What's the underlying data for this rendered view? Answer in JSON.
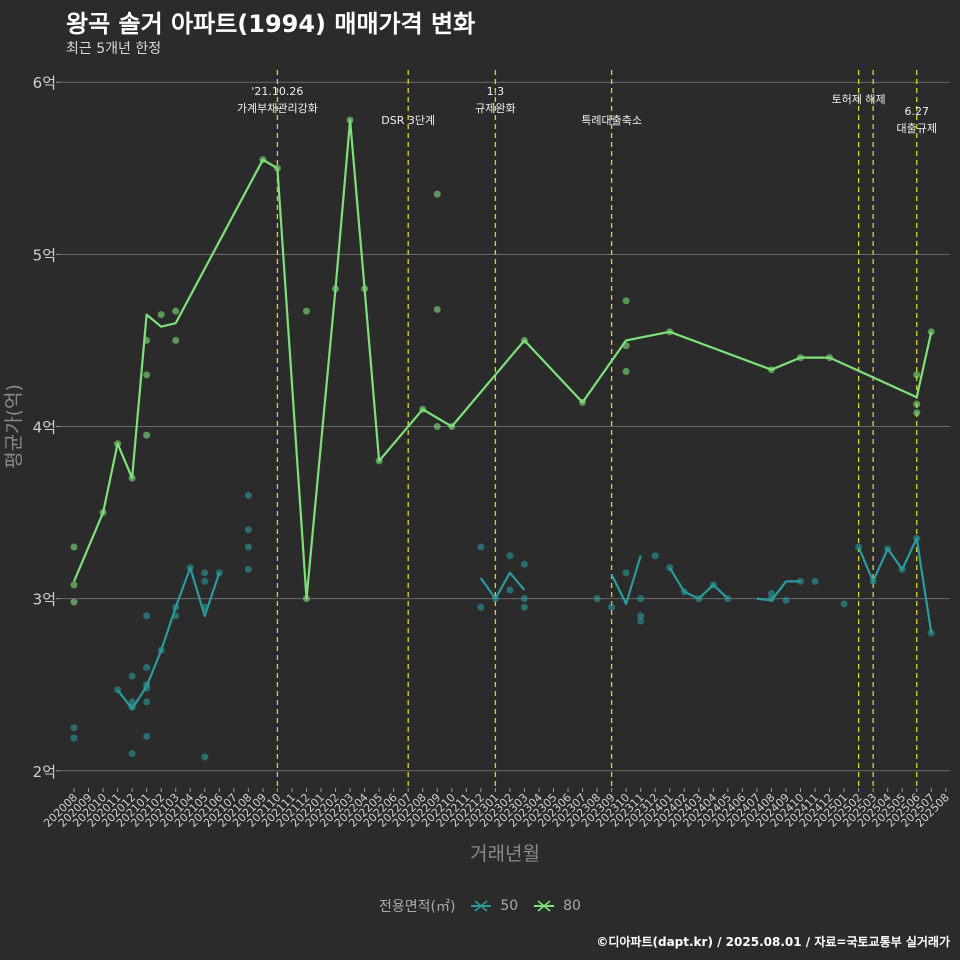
{
  "header": {
    "title": "왕곡 솔거 아파트(1994) 매매가격 변화",
    "subtitle": "최근 5개년 한정"
  },
  "caption": "©디아파트(dapt.kr) / 2025.08.01 / 자료=국토교통부 실거래가",
  "legend": {
    "title": "전용면적(㎡)",
    "items": [
      {
        "label": "50",
        "color": "#2a9a9c"
      },
      {
        "label": "80",
        "color": "#7fe07a"
      }
    ]
  },
  "chart_data": {
    "type": "line",
    "xlabel": "거래년월",
    "ylabel": "평균가(억)",
    "ylim": [
      1.9,
      6.1
    ],
    "y_ticks": [
      2,
      3,
      4,
      5,
      6
    ],
    "y_tick_labels": [
      "2억",
      "3억",
      "4억",
      "5억",
      "6억"
    ],
    "grid": true,
    "legend_position": "bottom",
    "categories": [
      "202008",
      "202009",
      "202010",
      "202011",
      "202012",
      "202101",
      "202102",
      "202103",
      "202104",
      "202105",
      "202106",
      "202107",
      "202108",
      "202109",
      "202110",
      "202111",
      "202112",
      "202201",
      "202202",
      "202203",
      "202204",
      "202205",
      "202206",
      "202207",
      "202208",
      "202209",
      "202210",
      "202211",
      "202212",
      "202301",
      "202302",
      "202303",
      "202304",
      "202305",
      "202306",
      "202307",
      "202308",
      "202309",
      "202310",
      "202311",
      "202312",
      "202401",
      "202402",
      "202403",
      "202404",
      "202405",
      "202406",
      "202407",
      "202408",
      "202409",
      "202410",
      "202411",
      "202412",
      "202501",
      "202502",
      "202503",
      "202504",
      "202505",
      "202506",
      "202507",
      "202508"
    ],
    "series": [
      {
        "name": "50",
        "color": "#2a9a9c",
        "line": [
          [
            2.47,
            2.36,
            2.49,
            2.7,
            2.95,
            3.18,
            2.9,
            3.15
          ],
          [
            3.12,
            3.0,
            3.15,
            3.05
          ],
          [
            3.14,
            2.97,
            3.25
          ],
          [
            3.18,
            3.04,
            3.0,
            3.08,
            3.0
          ],
          [
            3.0,
            2.99,
            3.1,
            3.1
          ],
          [
            3.3,
            3.1,
            3.29,
            3.17,
            3.35,
            2.8
          ]
        ],
        "line_x": [
          [
            "202011",
            "202012",
            "202101",
            "202102",
            "202103",
            "202104",
            "202105",
            "202106"
          ],
          [
            "202212",
            "202301",
            "202302",
            "202303"
          ],
          [
            "202309",
            "202310",
            "202311"
          ],
          [
            "202401",
            "202402",
            "202403",
            "202404",
            "202405"
          ],
          [
            "202407",
            "202408",
            "202409",
            "202410"
          ],
          [
            "202502",
            "202503",
            "202504",
            "202505",
            "202506",
            "202507"
          ]
        ],
        "points": [
          [
            "202008",
            2.25
          ],
          [
            "202008",
            2.19
          ],
          [
            "202011",
            2.47
          ],
          [
            "202012",
            2.55
          ],
          [
            "202012",
            2.4
          ],
          [
            "202012",
            2.37
          ],
          [
            "202012",
            2.1
          ],
          [
            "202101",
            2.9
          ],
          [
            "202101",
            2.6
          ],
          [
            "202101",
            2.5
          ],
          [
            "202101",
            2.48
          ],
          [
            "202101",
            2.4
          ],
          [
            "202101",
            2.2
          ],
          [
            "202102",
            2.7
          ],
          [
            "202103",
            2.95
          ],
          [
            "202103",
            2.9
          ],
          [
            "202104",
            3.18
          ],
          [
            "202105",
            3.15
          ],
          [
            "202105",
            3.1
          ],
          [
            "202105",
            2.95
          ],
          [
            "202105",
            2.08
          ],
          [
            "202106",
            3.15
          ],
          [
            "202108",
            3.6
          ],
          [
            "202108",
            3.4
          ],
          [
            "202108",
            3.3
          ],
          [
            "202108",
            3.17
          ],
          [
            "202212",
            3.3
          ],
          [
            "202212",
            2.95
          ],
          [
            "202301",
            3.0
          ],
          [
            "202302",
            3.25
          ],
          [
            "202302",
            3.05
          ],
          [
            "202303",
            3.2
          ],
          [
            "202303",
            3.0
          ],
          [
            "202303",
            2.95
          ],
          [
            "202308",
            3.0
          ],
          [
            "202309",
            2.95
          ],
          [
            "202310",
            3.15
          ],
          [
            "202311",
            3.0
          ],
          [
            "202311",
            2.9
          ],
          [
            "202311",
            2.87
          ],
          [
            "202312",
            3.25
          ],
          [
            "202401",
            3.18
          ],
          [
            "202402",
            3.04
          ],
          [
            "202403",
            3.0
          ],
          [
            "202404",
            3.08
          ],
          [
            "202405",
            3.0
          ],
          [
            "202408",
            3.03
          ],
          [
            "202408",
            3.0
          ],
          [
            "202409",
            2.99
          ],
          [
            "202410",
            3.1
          ],
          [
            "202411",
            3.1
          ],
          [
            "202501",
            2.97
          ],
          [
            "202502",
            3.3
          ],
          [
            "202503",
            3.1
          ],
          [
            "202504",
            3.29
          ],
          [
            "202505",
            3.17
          ],
          [
            "202506",
            3.35
          ],
          [
            "202507",
            2.8
          ]
        ]
      },
      {
        "name": "80",
        "color": "#7fe07a",
        "line_x": [
          "202008",
          "202010",
          "202011",
          "202012",
          "202101",
          "202102",
          "202103",
          "202109",
          "202110",
          "202112",
          "202202",
          "202203",
          "202204",
          "202205",
          "202208",
          "202210",
          "202303",
          "202307",
          "202310",
          "202401",
          "202408",
          "202410",
          "202412",
          "202506",
          "202507"
        ],
        "line": [
          3.1,
          3.5,
          3.9,
          3.7,
          4.65,
          4.58,
          4.6,
          5.55,
          5.5,
          3.0,
          4.8,
          5.78,
          4.8,
          3.8,
          4.1,
          4.0,
          4.5,
          4.14,
          4.5,
          4.55,
          4.33,
          4.4,
          4.4,
          4.17,
          4.55
        ],
        "points": [
          [
            "202008",
            3.3
          ],
          [
            "202008",
            3.08
          ],
          [
            "202008",
            2.98
          ],
          [
            "202010",
            3.5
          ],
          [
            "202011",
            3.9
          ],
          [
            "202012",
            3.7
          ],
          [
            "202101",
            4.5
          ],
          [
            "202101",
            4.3
          ],
          [
            "202101",
            3.95
          ],
          [
            "202102",
            4.65
          ],
          [
            "202103",
            4.67
          ],
          [
            "202103",
            4.5
          ],
          [
            "202109",
            5.55
          ],
          [
            "202110",
            5.5
          ],
          [
            "202112",
            4.67
          ],
          [
            "202112",
            3.0
          ],
          [
            "202202",
            4.8
          ],
          [
            "202203",
            5.78
          ],
          [
            "202204",
            4.8
          ],
          [
            "202205",
            3.8
          ],
          [
            "202208",
            4.1
          ],
          [
            "202209",
            5.35
          ],
          [
            "202209",
            4.68
          ],
          [
            "202209",
            4.0
          ],
          [
            "202210",
            4.0
          ],
          [
            "202303",
            4.5
          ],
          [
            "202307",
            4.14
          ],
          [
            "202310",
            4.73
          ],
          [
            "202310",
            4.47
          ],
          [
            "202310",
            4.32
          ],
          [
            "202401",
            4.55
          ],
          [
            "202408",
            4.33
          ],
          [
            "202410",
            4.4
          ],
          [
            "202412",
            4.4
          ],
          [
            "202506",
            4.3
          ],
          [
            "202506",
            4.13
          ],
          [
            "202506",
            4.08
          ],
          [
            "202507",
            4.55
          ]
        ]
      }
    ],
    "annotations": [
      {
        "x": "202110",
        "lines": [
          "'21.10.26",
          "가계부채관리강화"
        ],
        "row": 1
      },
      {
        "x": "202207",
        "lines": [
          "DSR 3단계"
        ],
        "row": 2
      },
      {
        "x": "202301",
        "lines": [
          "1.3",
          "규제완화"
        ],
        "row": 1
      },
      {
        "x": "202309",
        "lines": [
          "특례대출축소"
        ],
        "row": 2
      },
      {
        "x": "202502",
        "lines": [
          "토허제 해제"
        ],
        "row": 1
      },
      {
        "x": "202503",
        "lines": [],
        "row": 1
      },
      {
        "x": "202506",
        "lines": [
          "6.27",
          "대출규제"
        ],
        "row": 3
      }
    ]
  }
}
